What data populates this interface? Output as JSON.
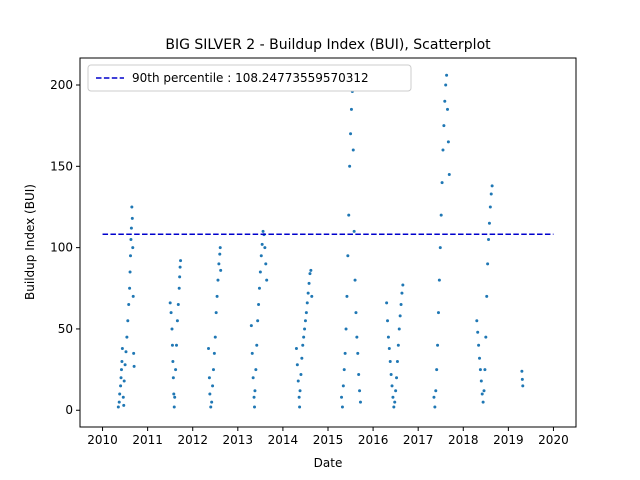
{
  "chart_data": {
    "type": "scatter",
    "title": "BIG SILVER 2 - Buildup Index (BUI), Scatterplot",
    "xlabel": "Date",
    "ylabel": "Buildup Index (BUI)",
    "xlim": [
      2009.5,
      2020.5
    ],
    "ylim": [
      -10.3,
      216.6
    ],
    "x_ticks": [
      2010,
      2011,
      2012,
      2013,
      2014,
      2015,
      2016,
      2017,
      2018,
      2019,
      2020
    ],
    "x_tick_labels": [
      "2010",
      "2011",
      "2012",
      "2013",
      "2014",
      "2015",
      "2016",
      "2017",
      "2018",
      "2019",
      "2020"
    ],
    "y_ticks": [
      0,
      50,
      100,
      150,
      200
    ],
    "y_tick_labels": [
      "0",
      "50",
      "100",
      "150",
      "200"
    ],
    "series": [
      {
        "color": "#1f77b4",
        "marker": "point",
        "points": [
          [
            2010.35,
            2
          ],
          [
            2010.37,
            5
          ],
          [
            2010.38,
            10
          ],
          [
            2010.4,
            15
          ],
          [
            2010.41,
            20
          ],
          [
            2010.42,
            25
          ],
          [
            2010.43,
            30
          ],
          [
            2010.44,
            38
          ],
          [
            2010.46,
            8
          ],
          [
            2010.47,
            3
          ],
          [
            2010.48,
            18
          ],
          [
            2010.5,
            28
          ],
          [
            2010.52,
            36
          ],
          [
            2010.54,
            45
          ],
          [
            2010.56,
            55
          ],
          [
            2010.58,
            65
          ],
          [
            2010.6,
            75
          ],
          [
            2010.61,
            85
          ],
          [
            2010.62,
            95
          ],
          [
            2010.63,
            105
          ],
          [
            2010.64,
            112
          ],
          [
            2010.65,
            125
          ],
          [
            2010.66,
            118
          ],
          [
            2010.67,
            100
          ],
          [
            2010.68,
            70
          ],
          [
            2010.69,
            35
          ],
          [
            2010.7,
            27
          ],
          [
            2011.5,
            66
          ],
          [
            2011.52,
            60
          ],
          [
            2011.54,
            50
          ],
          [
            2011.55,
            40
          ],
          [
            2011.56,
            30
          ],
          [
            2011.57,
            20
          ],
          [
            2011.58,
            10
          ],
          [
            2011.59,
            2
          ],
          [
            2011.6,
            8
          ],
          [
            2011.62,
            25
          ],
          [
            2011.64,
            40
          ],
          [
            2011.66,
            55
          ],
          [
            2011.68,
            65
          ],
          [
            2011.7,
            75
          ],
          [
            2011.71,
            82
          ],
          [
            2011.72,
            88
          ],
          [
            2011.73,
            92
          ],
          [
            2012.35,
            38
          ],
          [
            2012.37,
            20
          ],
          [
            2012.38,
            10
          ],
          [
            2012.4,
            2
          ],
          [
            2012.42,
            5
          ],
          [
            2012.44,
            15
          ],
          [
            2012.46,
            25
          ],
          [
            2012.48,
            35
          ],
          [
            2012.5,
            45
          ],
          [
            2012.52,
            60
          ],
          [
            2012.54,
            70
          ],
          [
            2012.56,
            80
          ],
          [
            2012.58,
            90
          ],
          [
            2012.6,
            96
          ],
          [
            2012.61,
            100
          ],
          [
            2012.62,
            86
          ],
          [
            2013.3,
            52
          ],
          [
            2013.32,
            35
          ],
          [
            2013.34,
            20
          ],
          [
            2013.36,
            8
          ],
          [
            2013.37,
            2
          ],
          [
            2013.38,
            12
          ],
          [
            2013.4,
            25
          ],
          [
            2013.42,
            40
          ],
          [
            2013.44,
            55
          ],
          [
            2013.46,
            65
          ],
          [
            2013.48,
            75
          ],
          [
            2013.5,
            85
          ],
          [
            2013.52,
            95
          ],
          [
            2013.54,
            102
          ],
          [
            2013.56,
            110
          ],
          [
            2013.58,
            108
          ],
          [
            2013.6,
            100
          ],
          [
            2013.62,
            90
          ],
          [
            2013.64,
            80
          ],
          [
            2014.3,
            38
          ],
          [
            2014.32,
            28
          ],
          [
            2014.34,
            18
          ],
          [
            2014.36,
            8
          ],
          [
            2014.37,
            2
          ],
          [
            2014.38,
            12
          ],
          [
            2014.4,
            22
          ],
          [
            2014.42,
            32
          ],
          [
            2014.44,
            40
          ],
          [
            2014.46,
            45
          ],
          [
            2014.48,
            50
          ],
          [
            2014.5,
            55
          ],
          [
            2014.52,
            60
          ],
          [
            2014.54,
            66
          ],
          [
            2014.56,
            72
          ],
          [
            2014.58,
            78
          ],
          [
            2014.6,
            84
          ],
          [
            2014.62,
            86
          ],
          [
            2014.64,
            70
          ],
          [
            2015.3,
            8
          ],
          [
            2015.32,
            2
          ],
          [
            2015.34,
            15
          ],
          [
            2015.36,
            25
          ],
          [
            2015.38,
            35
          ],
          [
            2015.4,
            50
          ],
          [
            2015.42,
            70
          ],
          [
            2015.44,
            95
          ],
          [
            2015.46,
            120
          ],
          [
            2015.48,
            150
          ],
          [
            2015.5,
            170
          ],
          [
            2015.52,
            185
          ],
          [
            2015.54,
            196
          ],
          [
            2015.56,
            160
          ],
          [
            2015.58,
            110
          ],
          [
            2015.6,
            80
          ],
          [
            2015.62,
            60
          ],
          [
            2015.64,
            45
          ],
          [
            2015.66,
            35
          ],
          [
            2015.68,
            22
          ],
          [
            2015.7,
            12
          ],
          [
            2015.72,
            5
          ],
          [
            2016.3,
            66
          ],
          [
            2016.32,
            55
          ],
          [
            2016.34,
            45
          ],
          [
            2016.36,
            38
          ],
          [
            2016.38,
            30
          ],
          [
            2016.4,
            22
          ],
          [
            2016.42,
            15
          ],
          [
            2016.44,
            8
          ],
          [
            2016.46,
            2
          ],
          [
            2016.48,
            5
          ],
          [
            2016.5,
            12
          ],
          [
            2016.52,
            20
          ],
          [
            2016.54,
            30
          ],
          [
            2016.56,
            40
          ],
          [
            2016.58,
            50
          ],
          [
            2016.6,
            58
          ],
          [
            2016.62,
            65
          ],
          [
            2016.64,
            72
          ],
          [
            2016.66,
            77
          ],
          [
            2017.35,
            8
          ],
          [
            2017.37,
            2
          ],
          [
            2017.39,
            12
          ],
          [
            2017.41,
            25
          ],
          [
            2017.43,
            40
          ],
          [
            2017.45,
            60
          ],
          [
            2017.47,
            80
          ],
          [
            2017.49,
            100
          ],
          [
            2017.51,
            120
          ],
          [
            2017.53,
            140
          ],
          [
            2017.55,
            160
          ],
          [
            2017.57,
            175
          ],
          [
            2017.59,
            190
          ],
          [
            2017.61,
            200
          ],
          [
            2017.63,
            206
          ],
          [
            2017.65,
            185
          ],
          [
            2017.67,
            165
          ],
          [
            2017.69,
            145
          ],
          [
            2018.3,
            55
          ],
          [
            2018.32,
            48
          ],
          [
            2018.34,
            40
          ],
          [
            2018.36,
            32
          ],
          [
            2018.38,
            25
          ],
          [
            2018.4,
            18
          ],
          [
            2018.42,
            10
          ],
          [
            2018.44,
            5
          ],
          [
            2018.46,
            12
          ],
          [
            2018.48,
            25
          ],
          [
            2018.5,
            45
          ],
          [
            2018.52,
            70
          ],
          [
            2018.54,
            90
          ],
          [
            2018.56,
            105
          ],
          [
            2018.58,
            115
          ],
          [
            2018.6,
            125
          ],
          [
            2018.62,
            133
          ],
          [
            2018.64,
            138
          ],
          [
            2019.3,
            24
          ],
          [
            2019.31,
            19
          ],
          [
            2019.32,
            15
          ]
        ]
      }
    ],
    "reference_line": {
      "label": "90th percentile : 108.24773559570312",
      "value": 108.24773559570312,
      "x_range": [
        2010,
        2020
      ],
      "color": "#0000cc",
      "style": "dashed"
    },
    "legend_placement": "top-left",
    "grid": false
  }
}
